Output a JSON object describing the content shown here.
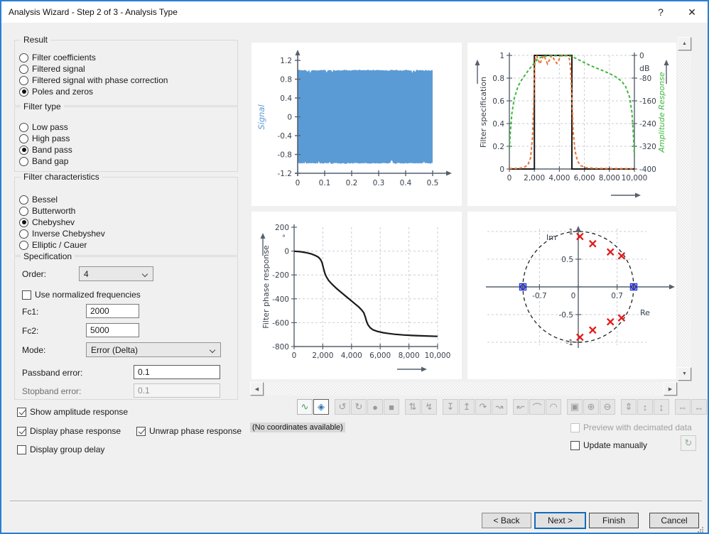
{
  "window": {
    "title": "Analysis Wizard - Step 2 of 3 - Analysis Type",
    "help_label": "?",
    "close_label": "✕"
  },
  "colors": {
    "window_border": "#2a7fd4",
    "signal_fill": "#5b9bd5",
    "magnitude_orange": "#ed7131",
    "amplitude_green": "#3db83d",
    "pole_red": "#e01b1b",
    "zero_blue": "#2833cc",
    "default_button_blue": "#0f6cbd",
    "axis": "#55606e",
    "tick_text": "#39414d",
    "grid": "#c9ced6"
  },
  "groups": {
    "result": {
      "label": "Result",
      "options": [
        {
          "label": "Filter coefficients",
          "selected": false
        },
        {
          "label": "Filtered signal",
          "selected": false
        },
        {
          "label": "Filtered signal with phase correction",
          "selected": false
        },
        {
          "label": "Poles and zeros",
          "selected": true
        }
      ]
    },
    "filter_type": {
      "label": "Filter type",
      "options": [
        {
          "label": "Low pass",
          "selected": false
        },
        {
          "label": "High pass",
          "selected": false
        },
        {
          "label": "Band pass",
          "selected": true
        },
        {
          "label": "Band gap",
          "selected": false
        }
      ]
    },
    "filter_characteristics": {
      "label": "Filter characteristics",
      "options": [
        {
          "label": "Bessel",
          "selected": false
        },
        {
          "label": "Butterworth",
          "selected": false
        },
        {
          "label": "Chebyshev",
          "selected": true
        },
        {
          "label": "Inverse Chebyshev",
          "selected": false
        },
        {
          "label": "Elliptic / Cauer",
          "selected": false
        }
      ]
    },
    "specification": {
      "label": "Specification",
      "order": {
        "label": "Order:",
        "value": "4"
      },
      "use_normalized": {
        "label": "Use normalized frequencies",
        "checked": false
      },
      "fc1": {
        "label": "Fc1:",
        "value": "2000"
      },
      "fc2": {
        "label": "Fc2:",
        "value": "5000"
      },
      "mode": {
        "label": "Mode:",
        "value": "Error (Delta)"
      },
      "passband_error": {
        "label": "Passband error:",
        "value": "0.1",
        "enabled": true
      },
      "stopband_error": {
        "label": "Stopband error:",
        "value": "0.1",
        "enabled": false
      }
    }
  },
  "display_options": [
    {
      "id": "show-amplitude-response",
      "label": "Show amplitude response",
      "checked": true,
      "enabled": true
    },
    {
      "id": "display-phase-response",
      "label": "Display phase response",
      "checked": true,
      "enabled": true
    },
    {
      "id": "unwrap-phase-response",
      "label": "Unwrap phase response",
      "checked": true,
      "enabled": true
    },
    {
      "id": "display-group-delay",
      "label": "Display group delay",
      "checked": false,
      "enabled": true
    }
  ],
  "toolbar": {
    "icons": [
      {
        "name": "curve-editor-icon",
        "glyph": "∿",
        "state": "enabled",
        "group": 0
      },
      {
        "name": "fit-to-view-icon",
        "glyph": "◈",
        "state": "selected",
        "group": 0
      },
      {
        "name": "rotate-ccw-icon",
        "glyph": "↺",
        "state": "disabled",
        "group": 1
      },
      {
        "name": "rotate-cw-icon",
        "glyph": "↻",
        "state": "disabled",
        "group": 1
      },
      {
        "name": "shape-blob-icon",
        "glyph": "●",
        "state": "disabled",
        "group": 1
      },
      {
        "name": "shape-square-icon",
        "glyph": "■",
        "state": "disabled",
        "group": 1
      },
      {
        "name": "move-points-vertical-icon",
        "glyph": "⇅",
        "state": "disabled",
        "group": 2
      },
      {
        "name": "move-curve-icon",
        "glyph": "↯",
        "state": "disabled",
        "group": 2
      },
      {
        "name": "snap-down-icon",
        "glyph": "↧",
        "state": "disabled",
        "group": 3
      },
      {
        "name": "snap-up-icon",
        "glyph": "↥",
        "state": "disabled",
        "group": 3
      },
      {
        "name": "bend-curve-icon",
        "glyph": "↷",
        "state": "disabled",
        "group": 3
      },
      {
        "name": "swap-curve-icon",
        "glyph": "↝",
        "state": "disabled",
        "group": 3
      },
      {
        "name": "select-lasso-arrow-icon",
        "glyph": "↜",
        "state": "disabled",
        "group": 4
      },
      {
        "name": "select-points-icon",
        "glyph": "⌒",
        "state": "disabled",
        "group": 4
      },
      {
        "name": "select-region-icon",
        "glyph": "◠",
        "state": "disabled",
        "group": 4
      },
      {
        "name": "zoom-region-icon",
        "glyph": "▣",
        "state": "disabled",
        "group": 5
      },
      {
        "name": "zoom-in-icon",
        "glyph": "⊕",
        "state": "disabled",
        "group": 5
      },
      {
        "name": "zoom-out-icon",
        "glyph": "⊖",
        "state": "disabled",
        "group": 5
      },
      {
        "name": "scale-y-dotted-icon",
        "glyph": "⇕",
        "state": "disabled",
        "group": 6
      },
      {
        "name": "scale-y-icon",
        "glyph": "↕",
        "state": "disabled",
        "group": 6
      },
      {
        "name": "expand-y-icon",
        "glyph": "↨",
        "state": "disabled",
        "group": 6
      },
      {
        "name": "scale-x-dotted-icon",
        "glyph": "⇔",
        "state": "disabled",
        "group": 7
      },
      {
        "name": "scale-x-icon",
        "glyph": "↔",
        "state": "disabled",
        "group": 7
      },
      {
        "name": "expand-x-icon",
        "glyph": "⇄",
        "state": "disabled",
        "group": 7
      }
    ]
  },
  "status": {
    "coordinates": "(No coordinates available)"
  },
  "preview_options": {
    "preview_decimated": {
      "label": "Preview with decimated data",
      "checked": false,
      "enabled": false
    },
    "update_manually": {
      "label": "Update manually",
      "checked": false,
      "enabled": true
    },
    "refresh_button_icon": "refresh-page-icon"
  },
  "footer": {
    "buttons": [
      {
        "label": "< Back",
        "style": "normal"
      },
      {
        "label": "Next >",
        "style": "default"
      },
      {
        "label": "Finish",
        "style": "strong"
      },
      {
        "label": "Cancel",
        "style": "strong"
      }
    ]
  },
  "chart_data": [
    {
      "id": "signal",
      "type": "area",
      "ylabel": "Signal",
      "ylabel_color": "#5b9bd5",
      "xlim": [
        0,
        0.55
      ],
      "ylim": [
        -1.2,
        1.3
      ],
      "x_ticks": [
        0,
        0.1,
        0.2,
        0.3,
        0.4,
        0.5
      ],
      "y_ticks": [
        -1.2,
        -0.8,
        -0.4,
        0,
        0.4,
        0.8,
        1.2
      ],
      "band": {
        "x_start": 0,
        "x_end": 0.5,
        "y_min": -1,
        "y_max": 1,
        "samples": 140
      },
      "fill_color": "#5b9bd5",
      "description": "dense oscillating signal filling the envelope ±1 over 0 to 0.5"
    },
    {
      "id": "filter-specification",
      "type": "line",
      "ylabel_left": "Filter specification",
      "ylabel_right": "Amplitude Response",
      "y_right_unit": "dB",
      "xlim": [
        0,
        10000
      ],
      "x_ticks": [
        0,
        2000,
        4000,
        6000,
        8000,
        10000
      ],
      "ylim_left": [
        0,
        1
      ],
      "y_ticks_left": [
        0,
        0.2,
        0.4,
        0.6,
        0.8,
        1
      ],
      "ylim_right": [
        -400,
        0
      ],
      "y_ticks_right": [
        0,
        -80,
        -160,
        -240,
        -320,
        -400
      ],
      "grid": true,
      "series": [
        {
          "name": "filter-specification-mask",
          "color": "#1a1a1a",
          "style": "solid",
          "axis": "left",
          "points": [
            [
              0,
              0
            ],
            [
              2000,
              0
            ],
            [
              2000,
              1
            ],
            [
              5000,
              1
            ],
            [
              5000,
              0
            ],
            [
              10000,
              0
            ]
          ]
        },
        {
          "name": "filter-magnitude",
          "color": "#ed7131",
          "style": "dashed",
          "axis": "left",
          "points": [
            [
              0,
              0.004
            ],
            [
              800,
              0.006
            ],
            [
              1200,
              0.015
            ],
            [
              1500,
              0.04
            ],
            [
              1700,
              0.1
            ],
            [
              1850,
              0.28
            ],
            [
              1950,
              0.6
            ],
            [
              2020,
              0.9
            ],
            [
              2100,
              0.99
            ],
            [
              2200,
              0.995
            ],
            [
              2300,
              0.96
            ],
            [
              2450,
              0.925
            ],
            [
              2600,
              0.97
            ],
            [
              2750,
              1.0
            ],
            [
              2900,
              0.965
            ],
            [
              3050,
              0.925
            ],
            [
              3200,
              0.96
            ],
            [
              3400,
              1.0
            ],
            [
              3600,
              0.96
            ],
            [
              3800,
              0.93
            ],
            [
              4000,
              0.97
            ],
            [
              4200,
              1.0
            ],
            [
              4350,
              0.99
            ],
            [
              4500,
              1.0
            ],
            [
              4650,
              0.995
            ],
            [
              4800,
              0.97
            ],
            [
              4900,
              0.88
            ],
            [
              5000,
              0.62
            ],
            [
              5100,
              0.33
            ],
            [
              5250,
              0.16
            ],
            [
              5450,
              0.07
            ],
            [
              5700,
              0.03
            ],
            [
              6100,
              0.012
            ],
            [
              6800,
              0.006
            ],
            [
              8000,
              0.004
            ],
            [
              10000,
              0.003
            ]
          ]
        },
        {
          "name": "amplitude-response-db",
          "color": "#3db83d",
          "style": "dashed",
          "axis": "right",
          "points": [
            [
              0,
              -330
            ],
            [
              80,
              -270
            ],
            [
              200,
              -205
            ],
            [
              400,
              -150
            ],
            [
              700,
              -108
            ],
            [
              1000,
              -85
            ],
            [
              1300,
              -66
            ],
            [
              1600,
              -48
            ],
            [
              1900,
              -32
            ],
            [
              2200,
              -16
            ],
            [
              2500,
              -7
            ],
            [
              2800,
              -3
            ],
            [
              3200,
              -1.5
            ],
            [
              3600,
              -1
            ],
            [
              4000,
              -2
            ],
            [
              4400,
              -1
            ],
            [
              4800,
              -2
            ],
            [
              5000,
              -4
            ],
            [
              5300,
              -10
            ],
            [
              5700,
              -19
            ],
            [
              6100,
              -28
            ],
            [
              6600,
              -38
            ],
            [
              7100,
              -47
            ],
            [
              7600,
              -56
            ],
            [
              8100,
              -66
            ],
            [
              8600,
              -78
            ],
            [
              9000,
              -92
            ],
            [
              9300,
              -110
            ],
            [
              9600,
              -145
            ],
            [
              9800,
              -200
            ],
            [
              9920,
              -280
            ],
            [
              10000,
              -355
            ]
          ]
        }
      ]
    },
    {
      "id": "filter-phase-response",
      "type": "line",
      "ylabel": "Filter phase response",
      "y_unit": "°",
      "xlim": [
        0,
        10000
      ],
      "x_ticks": [
        0,
        2000,
        4000,
        6000,
        8000,
        10000
      ],
      "ylim": [
        -800,
        200
      ],
      "y_ticks": [
        200,
        0,
        -200,
        -400,
        -600,
        -800
      ],
      "grid": true,
      "series": [
        {
          "name": "phase",
          "color": "#1a1a1a",
          "style": "solid",
          "points": [
            [
              0,
              -1
            ],
            [
              400,
              -5
            ],
            [
              800,
              -12
            ],
            [
              1200,
              -24
            ],
            [
              1500,
              -38
            ],
            [
              1700,
              -52
            ],
            [
              1850,
              -72
            ],
            [
              1950,
              -98
            ],
            [
              2050,
              -145
            ],
            [
              2150,
              -188
            ],
            [
              2250,
              -216
            ],
            [
              2400,
              -245
            ],
            [
              2600,
              -272
            ],
            [
              2800,
              -296
            ],
            [
              3000,
              -318
            ],
            [
              3300,
              -348
            ],
            [
              3600,
              -378
            ],
            [
              3900,
              -408
            ],
            [
              4200,
              -438
            ],
            [
              4500,
              -468
            ],
            [
              4700,
              -492
            ],
            [
              4850,
              -516
            ],
            [
              4950,
              -548
            ],
            [
              5050,
              -590
            ],
            [
              5150,
              -618
            ],
            [
              5300,
              -642
            ],
            [
              5500,
              -660
            ],
            [
              5800,
              -673
            ],
            [
              6200,
              -684
            ],
            [
              6600,
              -691
            ],
            [
              7000,
              -697
            ],
            [
              7600,
              -703
            ],
            [
              8200,
              -707
            ],
            [
              9000,
              -711
            ],
            [
              10000,
              -715
            ]
          ]
        }
      ]
    },
    {
      "id": "poles-and-zeros",
      "type": "scatter",
      "xlabel": "Re",
      "ylabel": "Im",
      "x_ticks": [
        -0.7,
        0,
        0.7
      ],
      "y_ticks": [
        1,
        0.5,
        0,
        -0.5,
        -1
      ],
      "unit_circle": true,
      "zeros": [
        [
          -1,
          0
        ],
        [
          1,
          0
        ]
      ],
      "poles": [
        [
          0.03,
          0.91
        ],
        [
          0.26,
          0.78
        ],
        [
          0.58,
          0.63
        ],
        [
          0.78,
          0.56
        ],
        [
          0.03,
          -0.91
        ],
        [
          0.26,
          -0.78
        ],
        [
          0.58,
          -0.63
        ],
        [
          0.78,
          -0.56
        ]
      ]
    }
  ]
}
